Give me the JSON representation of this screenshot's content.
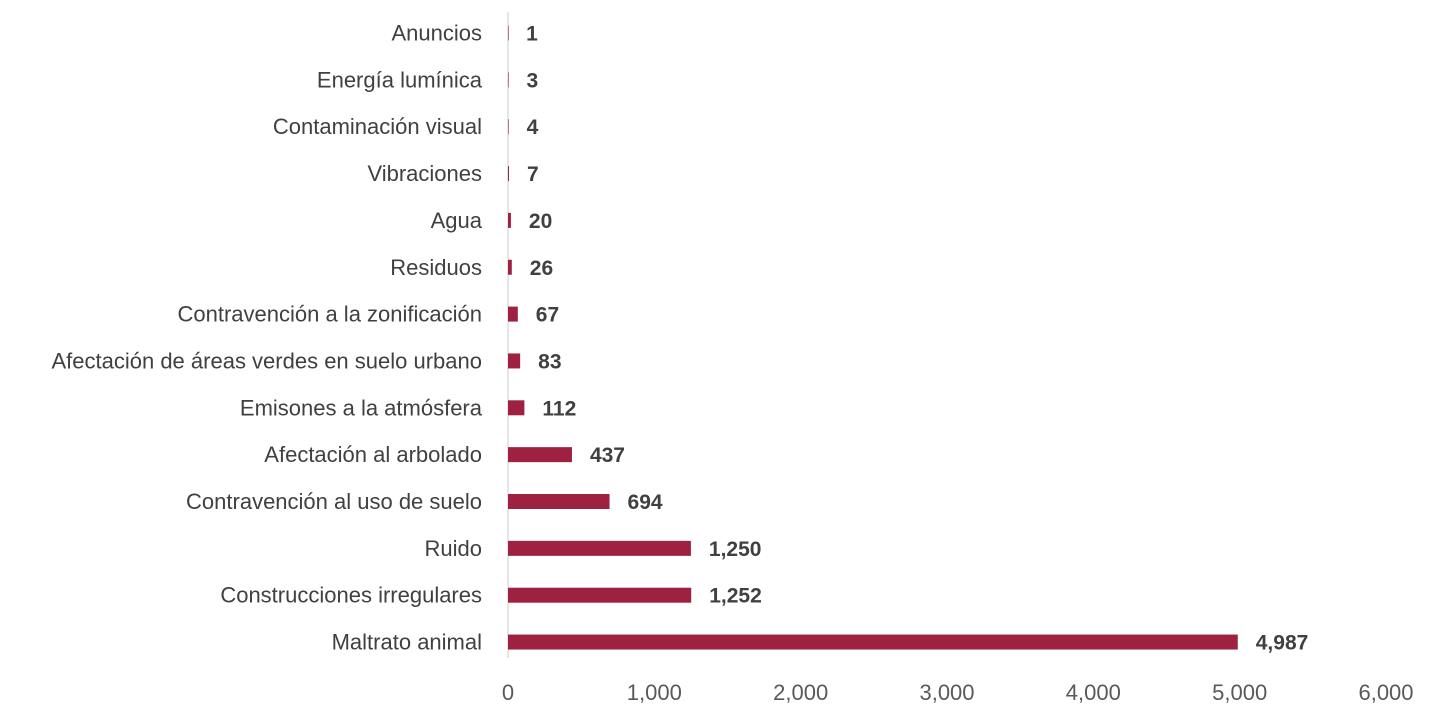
{
  "chart_data": {
    "type": "bar",
    "orientation": "horizontal",
    "title": "",
    "xlabel": "",
    "ylabel": "",
    "xlim": [
      0,
      6000
    ],
    "x_ticks": [
      0,
      1000,
      2000,
      3000,
      4000,
      5000,
      6000
    ],
    "x_tick_labels": [
      "0",
      "1,000",
      "2,000",
      "3,000",
      "4,000",
      "5,000",
      "6,000"
    ],
    "grid": false,
    "legend": "none",
    "bar_color": "#9e2142",
    "categories": [
      "Anuncios",
      "Energía lumínica",
      "Contaminación visual",
      "Vibraciones",
      "Agua",
      "Residuos",
      "Contravención a la zonificación",
      "Afectación de áreas verdes en suelo urbano",
      "Emisones a la atmósfera",
      "Afectación al arbolado",
      "Contravención al uso de suelo",
      "Ruido",
      "Construcciones irregulares",
      "Maltrato animal"
    ],
    "values": [
      1,
      3,
      4,
      7,
      20,
      26,
      67,
      83,
      112,
      437,
      694,
      1250,
      1252,
      4987
    ],
    "value_labels": [
      "1",
      "3",
      "4",
      "7",
      "20",
      "26",
      "67",
      "83",
      "112",
      "437",
      "694",
      "1,250",
      "1,252",
      "4,987"
    ]
  }
}
